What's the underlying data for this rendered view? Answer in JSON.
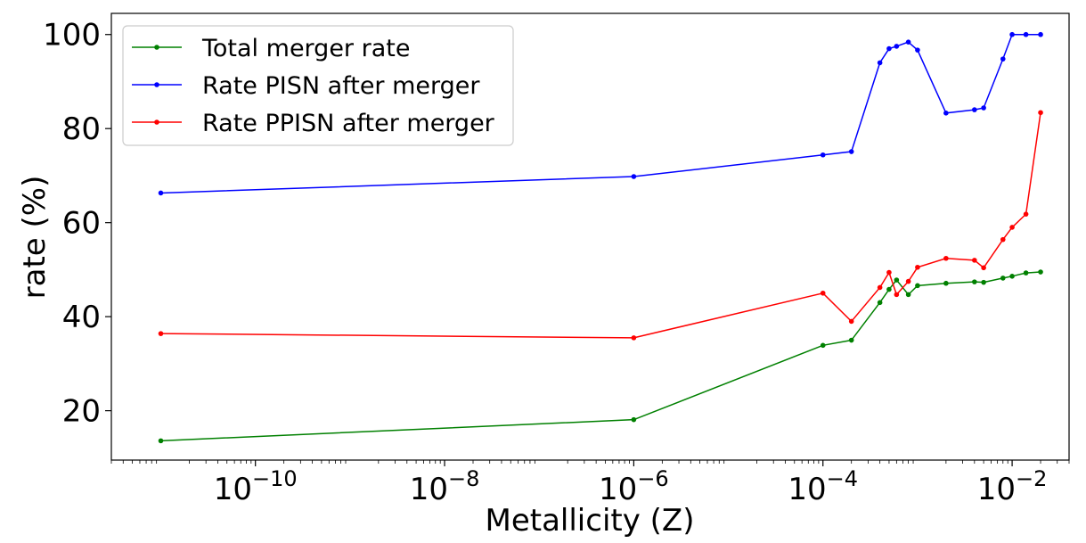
{
  "chart_data": {
    "type": "line",
    "title": "",
    "xlabel": "Metallicity (Z)",
    "ylabel": "rate (%)",
    "xscale": "log",
    "xlim": [
      3e-12,
      0.04
    ],
    "ylim": [
      9.5,
      104.5
    ],
    "xticks": [
      {
        "value": 1e-10,
        "base": "10",
        "exp": "−10"
      },
      {
        "value": 1e-08,
        "base": "10",
        "exp": "−8"
      },
      {
        "value": 1e-06,
        "base": "10",
        "exp": "−6"
      },
      {
        "value": 0.0001,
        "base": "10",
        "exp": "−4"
      },
      {
        "value": 0.01,
        "base": "10",
        "exp": "−2"
      }
    ],
    "yticks": [
      20,
      40,
      60,
      80,
      100
    ],
    "grid": false,
    "legend_position": "top-left",
    "series": [
      {
        "name": "Total merger rate",
        "color": "#008000",
        "x": [
          1e-11,
          1e-06,
          0.0001,
          0.0002,
          0.0004,
          0.0005,
          0.0006,
          0.0008,
          0.001,
          0.002,
          0.004,
          0.005,
          0.008,
          0.01,
          0.014,
          0.02
        ],
        "y": [
          13.6,
          18.1,
          33.9,
          35.0,
          43.0,
          45.8,
          47.8,
          44.7,
          46.6,
          47.1,
          47.4,
          47.3,
          48.2,
          48.6,
          49.3,
          49.5
        ]
      },
      {
        "name": "Rate PISN after merger",
        "color": "#0000ff",
        "x": [
          1e-11,
          1e-06,
          0.0001,
          0.0002,
          0.0004,
          0.0005,
          0.0006,
          0.0008,
          0.001,
          0.002,
          0.004,
          0.005,
          0.008,
          0.01,
          0.014,
          0.02
        ],
        "y": [
          66.3,
          69.8,
          74.4,
          75.1,
          94.0,
          97.0,
          97.5,
          98.4,
          96.7,
          83.3,
          84.0,
          84.4,
          94.8,
          100.0,
          100.0,
          100.0
        ]
      },
      {
        "name": "Rate PPISN after merger",
        "color": "#ff0000",
        "x": [
          1e-11,
          1e-06,
          0.0001,
          0.0002,
          0.0004,
          0.0005,
          0.0006,
          0.0008,
          0.001,
          0.002,
          0.004,
          0.005,
          0.008,
          0.01,
          0.014,
          0.02
        ],
        "y": [
          36.4,
          35.5,
          45.0,
          39.0,
          46.2,
          49.4,
          44.7,
          47.5,
          50.5,
          52.4,
          52.0,
          50.4,
          56.4,
          59.0,
          61.8,
          83.4
        ]
      }
    ]
  }
}
